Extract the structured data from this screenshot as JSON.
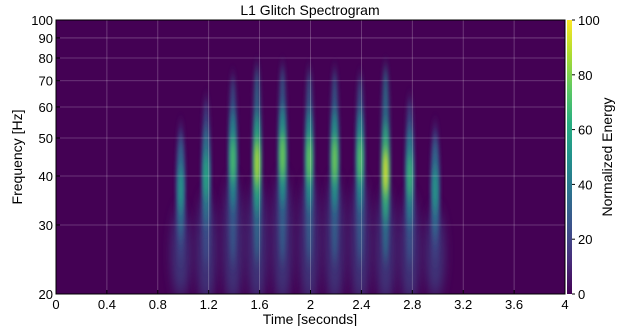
{
  "chart_data": {
    "type": "heatmap",
    "title": "L1 Glitch Spectrogram",
    "xlabel": "Time [seconds]",
    "ylabel": "Frequency [Hz]",
    "xlim": [
      0,
      4
    ],
    "ylim": [
      20,
      100
    ],
    "y_scale": "log",
    "grid": true,
    "x_ticks": [
      {
        "value": 0,
        "label": "0"
      },
      {
        "value": 0.4,
        "label": "0.4"
      },
      {
        "value": 0.8,
        "label": "0.8"
      },
      {
        "value": 1.2,
        "label": "1.2"
      },
      {
        "value": 1.6,
        "label": "1.6"
      },
      {
        "value": 2.0,
        "label": "2"
      },
      {
        "value": 2.4,
        "label": "2.4"
      },
      {
        "value": 2.8,
        "label": "2.8"
      },
      {
        "value": 3.2,
        "label": "3.2"
      },
      {
        "value": 3.6,
        "label": "3.6"
      },
      {
        "value": 4.0,
        "label": "4"
      }
    ],
    "y_ticks": [
      {
        "value": 20,
        "label": "20"
      },
      {
        "value": 30,
        "label": "30"
      },
      {
        "value": 40,
        "label": "40"
      },
      {
        "value": 50,
        "label": "50"
      },
      {
        "value": 60,
        "label": "60"
      },
      {
        "value": 70,
        "label": "70"
      },
      {
        "value": 80,
        "label": "80"
      },
      {
        "value": 90,
        "label": "90"
      },
      {
        "value": 100,
        "label": "100"
      }
    ],
    "colorbar": {
      "label": "Normalized Energy",
      "colormap": "viridis",
      "range": [
        0,
        100
      ],
      "ticks": [
        {
          "value": 0,
          "label": "0"
        },
        {
          "value": 20,
          "label": "20"
        },
        {
          "value": 40,
          "label": "40"
        },
        {
          "value": 60,
          "label": "60"
        },
        {
          "value": 80,
          "label": "80"
        },
        {
          "value": 100,
          "label": "100"
        }
      ]
    },
    "blips": [
      {
        "t": 0.98,
        "f_peak": 37,
        "f_low": 22,
        "f_high": 55,
        "energy": 55
      },
      {
        "t": 1.18,
        "f_peak": 40,
        "f_low": 21,
        "f_high": 65,
        "energy": 62
      },
      {
        "t": 1.39,
        "f_peak": 44,
        "f_low": 21,
        "f_high": 75,
        "energy": 72
      },
      {
        "t": 1.58,
        "f_peak": 43,
        "f_low": 21,
        "f_high": 80,
        "energy": 92
      },
      {
        "t": 1.78,
        "f_peak": 45,
        "f_low": 21,
        "f_high": 80,
        "energy": 80
      },
      {
        "t": 1.99,
        "f_peak": 44,
        "f_low": 21,
        "f_high": 78,
        "energy": 78
      },
      {
        "t": 2.19,
        "f_peak": 44,
        "f_low": 21,
        "f_high": 78,
        "energy": 80
      },
      {
        "t": 2.39,
        "f_peak": 44,
        "f_low": 21,
        "f_high": 75,
        "energy": 75
      },
      {
        "t": 2.59,
        "f_peak": 41,
        "f_low": 21,
        "f_high": 80,
        "energy": 98
      },
      {
        "t": 2.78,
        "f_peak": 40,
        "f_low": 21,
        "f_high": 65,
        "energy": 68
      },
      {
        "t": 2.98,
        "f_peak": 37,
        "f_low": 22,
        "f_high": 55,
        "energy": 55
      }
    ]
  }
}
